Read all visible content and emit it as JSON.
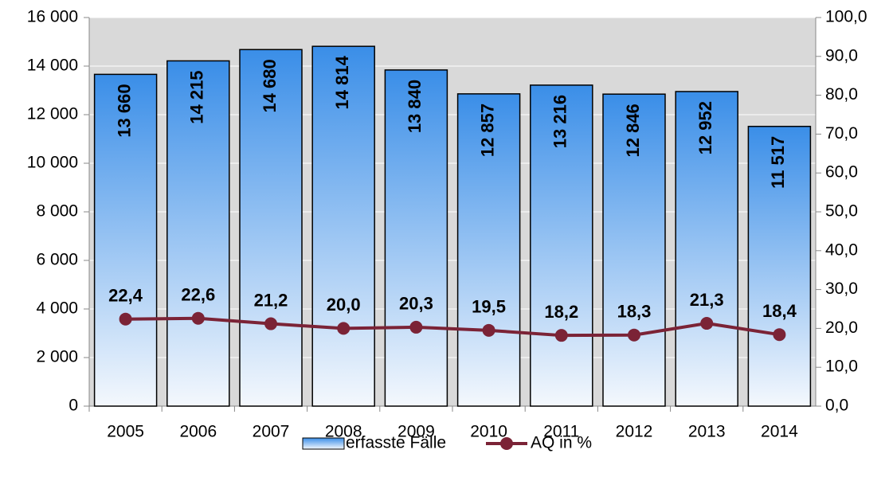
{
  "chart_data": {
    "type": "bar",
    "categories": [
      "2005",
      "2006",
      "2007",
      "2008",
      "2009",
      "2010",
      "2011",
      "2012",
      "2013",
      "2014"
    ],
    "series": [
      {
        "name": "erfasste Fälle",
        "type": "bar",
        "color": "#3a8ee8",
        "values": [
          13660,
          14215,
          14680,
          14814,
          13840,
          12857,
          13216,
          12846,
          12952,
          11517
        ],
        "value_labels": [
          "13 660",
          "14 215",
          "14 680",
          "14 814",
          "13 840",
          "12 857",
          "13 216",
          "12 846",
          "12 952",
          "11 517"
        ]
      },
      {
        "name": "AQ in %",
        "type": "line",
        "axis": "y2",
        "color": "#7b2336",
        "values": [
          22.4,
          22.6,
          21.2,
          20.0,
          20.3,
          19.5,
          18.2,
          18.3,
          21.3,
          18.4
        ],
        "value_labels": [
          "22,4",
          "22,6",
          "21,2",
          "20,0",
          "20,3",
          "19,5",
          "18,2",
          "18,3",
          "21,3",
          "18,4"
        ]
      }
    ],
    "ylim": [
      0,
      16000
    ],
    "yticks": [
      0,
      {
        "value": 2000,
        "label": "2 000"
      },
      {
        "value": 4000,
        "label": "4 000"
      },
      {
        "value": 6000,
        "label": "6 000"
      },
      {
        "value": 8000,
        "label": "8 000"
      },
      {
        "value": 10000,
        "label": "10 000"
      },
      {
        "value": 12000,
        "label": "12 000"
      },
      {
        "value": 14000,
        "label": "14 000"
      },
      {
        "value": 16000,
        "label": "16 000"
      }
    ],
    "y2lim": [
      0,
      100
    ],
    "y2ticks": [
      {
        "value": 0,
        "label": "0,0"
      },
      {
        "value": 10,
        "label": "10,0"
      },
      {
        "value": 20,
        "label": "20,0"
      },
      {
        "value": 30,
        "label": "30,0"
      },
      {
        "value": 40,
        "label": "40,0"
      },
      {
        "value": 50,
        "label": "50,0"
      },
      {
        "value": 60,
        "label": "60,0"
      },
      {
        "value": 70,
        "label": "70,0"
      },
      {
        "value": 80,
        "label": "80,0"
      },
      {
        "value": 90,
        "label": "90,0"
      },
      {
        "value": 100,
        "label": "100,0"
      }
    ],
    "grid": true,
    "legend": "bottom"
  }
}
